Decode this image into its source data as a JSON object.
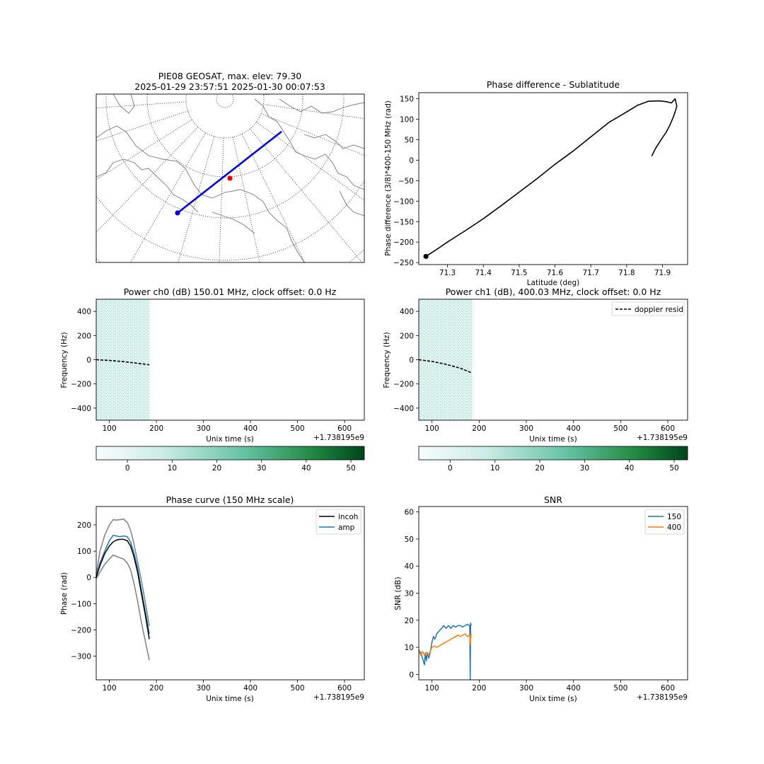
{
  "colors": {
    "track": "#0000ee",
    "station": "#ee0000",
    "coast": "#777777",
    "grid": "#000000",
    "phase": "#000000",
    "incoh": "#000000",
    "amp": "#1f77b4",
    "bounds": "#808080",
    "snr150": "#1f77b4",
    "snr400": "#ff7f0e",
    "doppler": "#000000",
    "cmap": [
      "#f7fcfd",
      "#ccece6",
      "#66c2a4",
      "#238b45",
      "#00441b"
    ]
  },
  "chart_data": [
    {
      "id": "map",
      "type": "scatter",
      "title_line1": "PIE08 GEOSAT, max. elev: 79.30",
      "title_line2": "2025-01-29 23:57:51 2025-01-30 00:07:53",
      "projection": "polar-stereographic",
      "series": [
        {
          "kind": "ground-track",
          "color": "#0000ee"
        },
        {
          "kind": "station",
          "color": "#ee0000"
        }
      ]
    },
    {
      "id": "phase-lat",
      "type": "line",
      "title": "Phase difference - Sublatitude",
      "xlabel": "Latitude (deg)",
      "ylabel": "Phase difference (3/8)*400-150 MHz (rad)",
      "xlim": [
        71.22,
        71.97
      ],
      "ylim": [
        -255,
        165
      ],
      "xticks": [
        "71.3",
        "71.4",
        "71.5",
        "71.6",
        "71.7",
        "71.8",
        "71.9"
      ],
      "yticks": [
        "150",
        "100",
        "50",
        "0",
        "−50",
        "−100",
        "−150",
        "−200",
        "−250"
      ],
      "x": [
        71.24,
        71.27,
        71.3,
        71.35,
        71.4,
        71.45,
        71.5,
        71.55,
        71.6,
        71.65,
        71.7,
        71.75,
        71.8,
        71.83,
        71.86,
        71.89,
        71.91,
        71.925,
        71.93,
        71.935,
        71.94,
        71.935,
        71.93,
        71.92,
        71.91,
        71.9,
        71.89,
        71.88,
        71.87
      ],
      "y": [
        -235,
        -218,
        -200,
        -172,
        -143,
        -111,
        -78,
        -45,
        -10,
        22,
        57,
        92,
        118,
        134,
        144,
        145,
        143,
        140,
        145,
        150,
        132,
        118,
        105,
        85,
        68,
        55,
        42,
        28,
        10
      ],
      "start_marker": [
        71.24,
        -235
      ]
    },
    {
      "id": "power-ch0",
      "type": "heatmap",
      "title": "Power ch0 (dB) 150.01 MHz, clock offset: 0.0 Hz",
      "xlabel": "Unix time (s)",
      "ylabel": "Frequency (Hz)",
      "offset_label": "+1.738195e9",
      "xlim": [
        72,
        642
      ],
      "ylim": [
        -500,
        500
      ],
      "xticks": [
        "100",
        "200",
        "300",
        "400",
        "500",
        "600"
      ],
      "yticks": [
        "400",
        "200",
        "0",
        "−200",
        "−400"
      ],
      "data_extent_x": [
        72,
        185
      ],
      "doppler": {
        "x": [
          72,
          100,
          130,
          160,
          185
        ],
        "y": [
          0,
          -6,
          -16,
          -29,
          -42
        ]
      },
      "colorbar": {
        "ticks": [
          "0",
          "10",
          "20",
          "30",
          "40",
          "50"
        ],
        "range": [
          -7,
          53
        ]
      }
    },
    {
      "id": "power-ch1",
      "type": "heatmap",
      "title": "Power ch1 (dB), 400.03 MHz, clock offset: 0.0 Hz",
      "xlabel": "Unix time (s)",
      "ylabel": "Frequency (Hz)",
      "offset_label": "+1.738195e9",
      "xlim": [
        72,
        642
      ],
      "ylim": [
        -500,
        500
      ],
      "xticks": [
        "100",
        "200",
        "300",
        "400",
        "500",
        "600"
      ],
      "yticks": [
        "400",
        "200",
        "0",
        "−200",
        "−400"
      ],
      "data_extent_x": [
        72,
        185
      ],
      "legend": [
        "doppler resid"
      ],
      "doppler": {
        "x": [
          72,
          100,
          130,
          160,
          185
        ],
        "y": [
          0,
          -14,
          -38,
          -70,
          -110
        ]
      },
      "colorbar": {
        "ticks": [
          "0",
          "10",
          "20",
          "30",
          "40",
          "50"
        ],
        "range": [
          -7,
          53
        ]
      }
    },
    {
      "id": "phase-curve",
      "type": "line",
      "title": "Phase curve (150 MHz scale)",
      "xlabel": "Unix time (s)",
      "ylabel": "Phase (rad)",
      "offset_label": "+1.738195e9",
      "xlim": [
        72,
        642
      ],
      "ylim": [
        -390,
        270
      ],
      "xticks": [
        "100",
        "200",
        "300",
        "400",
        "500",
        "600"
      ],
      "yticks": [
        "200",
        "100",
        "0",
        "−100",
        "−200",
        "−300"
      ],
      "legend": [
        "incoh",
        "amp"
      ],
      "x": [
        72,
        80,
        90,
        100,
        108,
        115,
        122,
        130,
        138,
        145,
        152,
        160,
        168,
        176,
        185
      ],
      "series": [
        {
          "name": "incoh",
          "values": [
            0,
            45,
            90,
            120,
            135,
            142,
            145,
            145,
            140,
            120,
            80,
            20,
            -60,
            -140,
            -235
          ]
        },
        {
          "name": "amp",
          "values": [
            5,
            55,
            100,
            140,
            160,
            158,
            155,
            158,
            155,
            135,
            95,
            35,
            -45,
            -125,
            -215
          ]
        },
        {
          "name": "upper",
          "values": [
            10,
            100,
            160,
            200,
            220,
            218,
            220,
            222,
            210,
            180,
            130,
            60,
            -10,
            -90,
            -185
          ]
        },
        {
          "name": "lower",
          "values": [
            -5,
            20,
            50,
            70,
            85,
            80,
            75,
            70,
            55,
            30,
            -20,
            -90,
            -170,
            -240,
            -315
          ]
        }
      ]
    },
    {
      "id": "snr",
      "type": "line",
      "title": "SNR",
      "xlabel": "Unix time (s)",
      "ylabel": "SNR (dB)",
      "offset_label": "+1.738195e9",
      "xlim": [
        72,
        642
      ],
      "ylim": [
        -2,
        62
      ],
      "xticks": [
        "100",
        "200",
        "300",
        "400",
        "500",
        "600"
      ],
      "yticks": [
        "60",
        "50",
        "40",
        "30",
        "20",
        "10",
        "0"
      ],
      "legend": [
        "150",
        "400"
      ],
      "series": [
        {
          "name": "150",
          "x": [
            72,
            76,
            80,
            84,
            86,
            88,
            90,
            93,
            96,
            100,
            103,
            106,
            110,
            115,
            120,
            125,
            130,
            135,
            140,
            145,
            150,
            155,
            160,
            165,
            170,
            175,
            180,
            181,
            182,
            183
          ],
          "y": [
            9,
            8,
            6,
            3.5,
            8,
            5,
            8,
            6,
            8,
            12,
            14,
            13,
            15,
            16,
            17,
            18,
            17,
            18,
            17,
            18,
            17.5,
            18,
            18,
            17.5,
            18,
            18.5,
            18,
            -2,
            19,
            18
          ]
        },
        {
          "name": "400",
          "x": [
            72,
            76,
            80,
            84,
            88,
            92,
            96,
            100,
            105,
            110,
            115,
            120,
            125,
            130,
            135,
            140,
            145,
            150,
            155,
            160,
            165,
            170,
            175,
            180,
            181,
            182,
            183
          ],
          "y": [
            9,
            7,
            8.5,
            7,
            8,
            7,
            8.5,
            10,
            10.5,
            10,
            10.5,
            11,
            11.5,
            12,
            12.5,
            13,
            13.5,
            14,
            14.5,
            14,
            14.5,
            15,
            14,
            14.5,
            11,
            13,
            15
          ]
        }
      ]
    }
  ]
}
